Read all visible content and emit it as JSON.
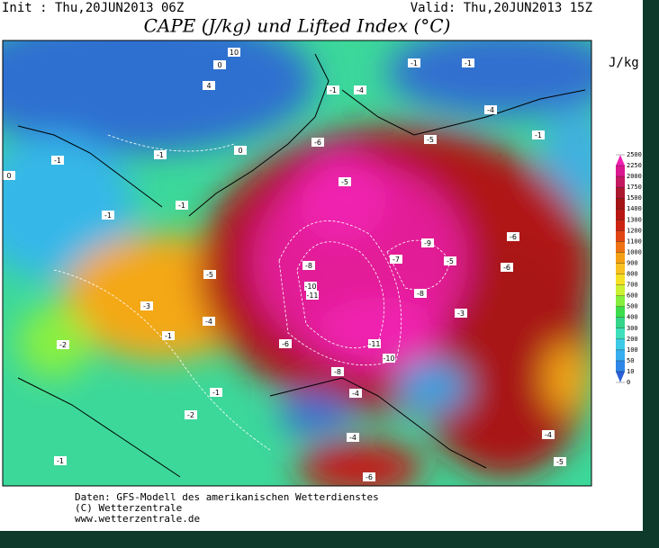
{
  "header": {
    "init": "Init : Thu,20JUN2013 06Z",
    "valid": "Valid: Thu,20JUN2013 15Z",
    "title": "CAPE (J/kg) und Lifted Index (°C)"
  },
  "colorbar": {
    "unit": "J/kg",
    "ticks": [
      0,
      10,
      50,
      100,
      200,
      300,
      400,
      500,
      600,
      700,
      800,
      900,
      1000,
      1100,
      1200,
      1300,
      1400,
      1500,
      1750,
      2000,
      2250,
      2500
    ],
    "colors": [
      "#2a5fd6",
      "#2e86e8",
      "#36aef0",
      "#3ccbe6",
      "#3ee0bc",
      "#34d48a",
      "#3cdc4c",
      "#86ee3c",
      "#ccf032",
      "#f6e024",
      "#f8c020",
      "#f4a014",
      "#ee7212",
      "#e04412",
      "#cc2412",
      "#b81612",
      "#a41414",
      "#ac1830",
      "#c41860",
      "#dc1890",
      "#f020b4"
    ]
  },
  "li_labels": [
    10,
    0,
    4,
    -1,
    -4,
    -1,
    -1,
    -4,
    -1,
    0,
    -1,
    -1,
    0,
    -6,
    -5,
    -5,
    -1,
    -1,
    -6,
    -9,
    -7,
    -5,
    -6,
    -8,
    -10,
    -11,
    -8,
    -3,
    -5,
    -3,
    -4,
    -1,
    -2,
    -6,
    -11,
    -10,
    -8,
    -4,
    -2,
    -1,
    -4,
    -4,
    -5,
    -6,
    -1
  ],
  "footer": [
    "Daten: GFS-Modell des amerikanischen Wetterdienstes",
    "(C) Wetterzentrale",
    "www.wetterzentrale.de"
  ]
}
